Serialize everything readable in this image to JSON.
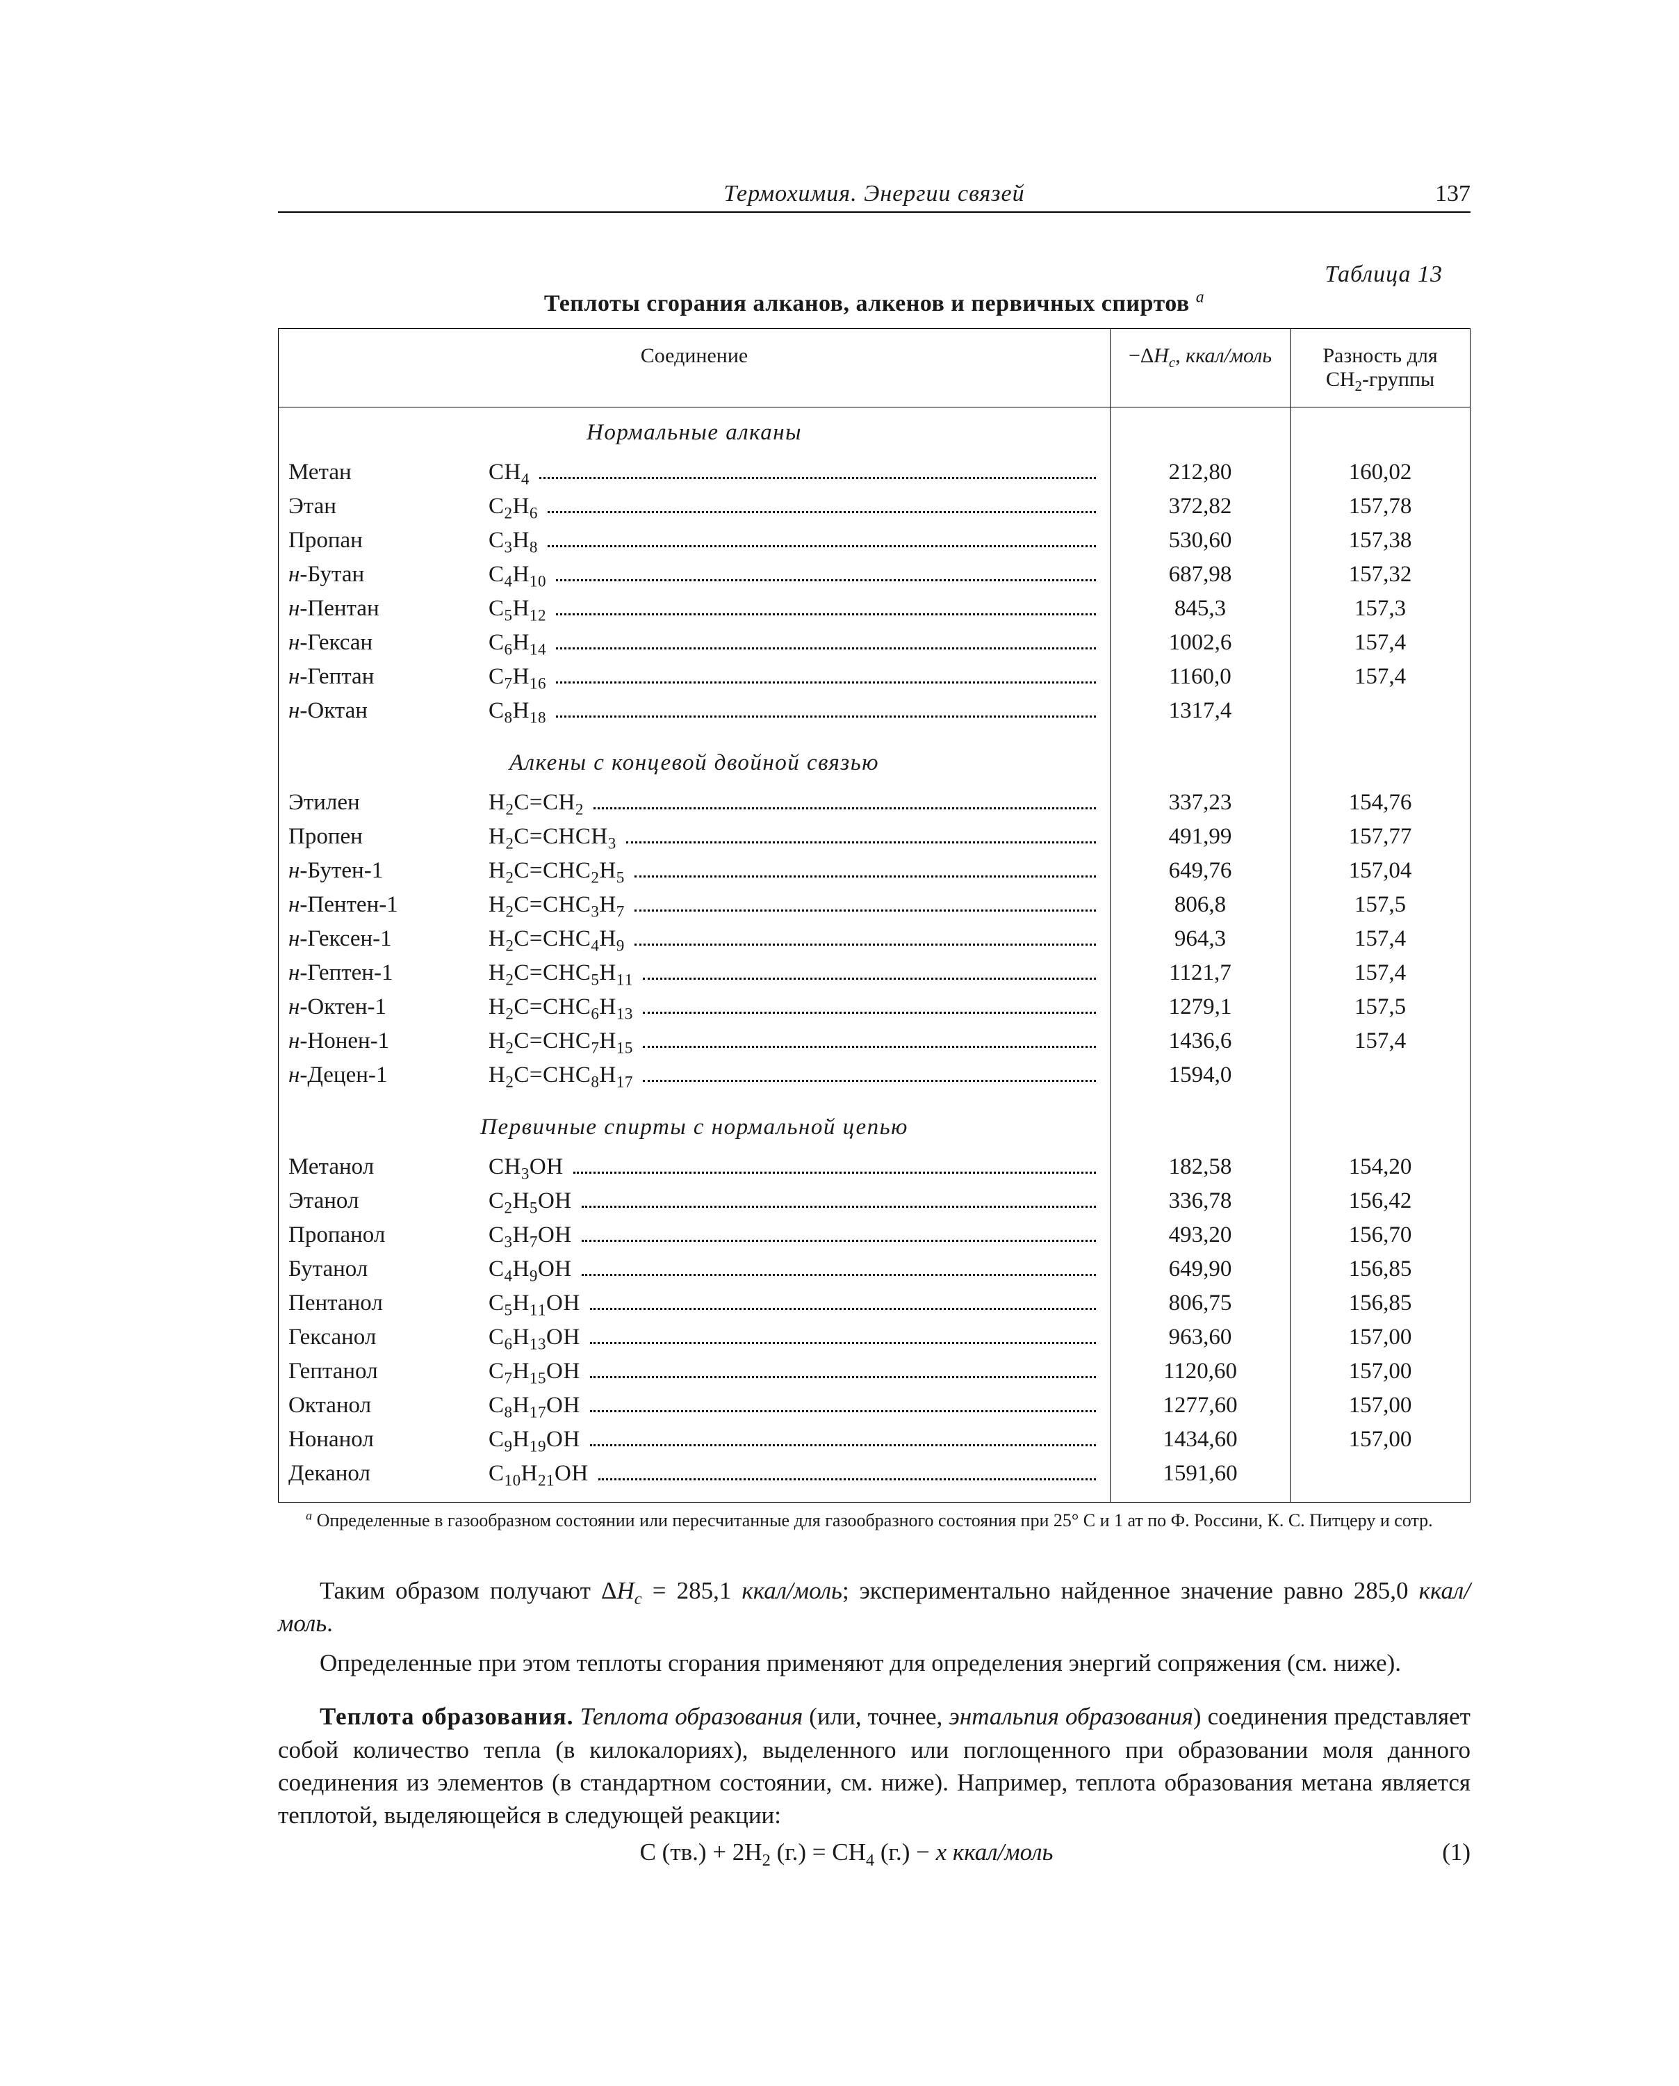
{
  "header": {
    "running_title": "Термохимия. Энергии связей",
    "page_number": "137"
  },
  "table": {
    "label": "Таблица 13",
    "title": "Теплоты сгорания алканов, алкенов и первичных спиртов",
    "title_sup": "а",
    "columns": {
      "compound": "Соединение",
      "dh": "−Δ𝐻𝑐, ккал/моль",
      "diff": "Разность для CH₂-группы"
    },
    "sections": [
      {
        "heading": "Нормальные алканы",
        "rows": [
          {
            "name": "Метан",
            "formula": "CH₄",
            "dh": "212,80",
            "diff": "160,02"
          },
          {
            "name": "Этан",
            "formula": "C₂H₆",
            "dh": "372,82",
            "diff": "157,78"
          },
          {
            "name": "Пропан",
            "formula": "C₃H₈",
            "dh": "530,60",
            "diff": "157,38"
          },
          {
            "name": "н-Бутан",
            "formula": "C₄H₁₀",
            "dh": "687,98",
            "diff": "157,32"
          },
          {
            "name": "н-Пентан",
            "formula": "C₅H₁₂",
            "dh": "845,3",
            "diff": "157,3"
          },
          {
            "name": "н-Гексан",
            "formula": "C₆H₁₄",
            "dh": "1002,6",
            "diff": "157,4"
          },
          {
            "name": "н-Гептан",
            "formula": "C₇H₁₆",
            "dh": "1160,0",
            "diff": "157,4"
          },
          {
            "name": "н-Октан",
            "formula": "C₈H₁₈",
            "dh": "1317,4",
            "diff": ""
          }
        ]
      },
      {
        "heading": "Алкены с концевой двойной связью",
        "rows": [
          {
            "name": "Этилен",
            "formula": "H₂C=CH₂",
            "dh": "337,23",
            "diff": "154,76"
          },
          {
            "name": "Пропен",
            "formula": "H₂C=CHCH₃",
            "dh": "491,99",
            "diff": "157,77"
          },
          {
            "name": "н-Бутен-1",
            "formula": "H₂C=CHC₂H₅",
            "dh": "649,76",
            "diff": "157,04"
          },
          {
            "name": "н-Пентен-1",
            "formula": "H₂C=CHC₃H₇",
            "dh": "806,8",
            "diff": "157,5"
          },
          {
            "name": "н-Гексен-1",
            "formula": "H₂C=CHC₄H₉",
            "dh": "964,3",
            "diff": "157,4"
          },
          {
            "name": "н-Гептен-1",
            "formula": "H₂C=CHC₅H₁₁",
            "dh": "1121,7",
            "diff": "157,4"
          },
          {
            "name": "н-Октен-1",
            "formula": "H₂C=CHC₆H₁₃",
            "dh": "1279,1",
            "diff": "157,5"
          },
          {
            "name": "н-Нонен-1",
            "formula": "H₂C=CHC₇H₁₅",
            "dh": "1436,6",
            "diff": "157,4"
          },
          {
            "name": "н-Децен-1",
            "formula": "H₂C=CHC₈H₁₇",
            "dh": "1594,0",
            "diff": ""
          }
        ]
      },
      {
        "heading": "Первичные спирты с нормальной цепью",
        "rows": [
          {
            "name": "Метанол",
            "formula": "CH₃OH",
            "dh": "182,58",
            "diff": "154,20"
          },
          {
            "name": "Этанол",
            "formula": "C₂H₅OH",
            "dh": "336,78",
            "diff": "156,42"
          },
          {
            "name": "Пропанол",
            "formula": "C₃H₇OH",
            "dh": "493,20",
            "diff": "156,70"
          },
          {
            "name": "Бутанол",
            "formula": "C₄H₉OH",
            "dh": "649,90",
            "diff": "156,85"
          },
          {
            "name": "Пентанол",
            "formula": "C₅H₁₁OH",
            "dh": "806,75",
            "diff": "156,85"
          },
          {
            "name": "Гексанол",
            "formula": "C₆H₁₃OH",
            "dh": "963,60",
            "diff": "157,00"
          },
          {
            "name": "Гептанол",
            "formula": "C₇H₁₅OH",
            "dh": "1120,60",
            "diff": "157,00"
          },
          {
            "name": "Октанол",
            "formula": "C₈H₁₇OH",
            "dh": "1277,60",
            "diff": "157,00"
          },
          {
            "name": "Нонанол",
            "formula": "C₉H₁₉OH",
            "dh": "1434,60",
            "diff": "157,00"
          },
          {
            "name": "Деканол",
            "formula": "C₁₀H₂₁OH",
            "dh": "1591,60",
            "diff": ""
          }
        ]
      }
    ],
    "footnote_mark": "а",
    "footnote": "Определенные в газообразном состоянии или пересчитанные для газообразного состояния при 25° С и 1 ат по Ф. Россини, К. С. Питцеру и сотр."
  },
  "body": {
    "p1a": "Таким образом получают Δ",
    "p1b": " = 285,1 ",
    "p1c": "; экспериментально найденное значение равно 285,0 ",
    "p1_unit": "ккал/моль",
    "p1_sub": "𝐻c",
    "p2": "Определенные при этом теплоты сгорания применяют для определения энергий сопряжения (см. ниже).",
    "p3_strong": "Теплота образования.",
    "p3_em1": "Теплота образования",
    "p3_mid": " (или, точнее, ",
    "p3_em2": "энтальпия образования",
    "p3_rest": ") соединения представляет собой количество тепла (в килокалориях), выделенного или поглощенного при образовании моля данного соединения из элементов (в стандартном состоянии, см. ниже). Например, теплота образования метана является теплотой, выделяющейся в следующей реакции:",
    "equation": "C (тв.) + 2H₂ (г.) = CH₄ (г.) − x ккал/моль",
    "equation_number": "(1)"
  }
}
